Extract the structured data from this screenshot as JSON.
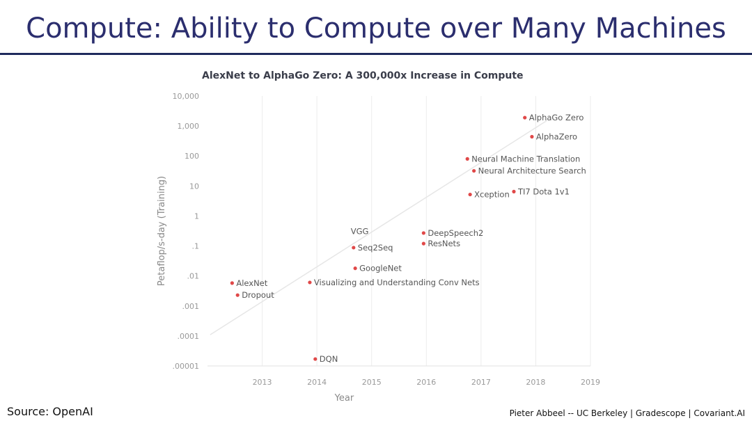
{
  "slide": {
    "title": "Compute: Ability to Compute over Many Machines",
    "source": "Source: OpenAI",
    "footer": "Pieter Abbeel -- UC Berkeley | Gradescope | Covariant.AI"
  },
  "colors": {
    "title": "#2b2e6e",
    "rule": "#1f2a5c",
    "point": "#e04848",
    "trend": "#e6e6e6"
  },
  "chart_data": {
    "type": "scatter",
    "title": "AlexNet to AlphaGo Zero: A 300,000x Increase in Compute",
    "xlabel": "Year",
    "ylabel": "Petaflop/s-day (Training)",
    "xlim": [
      2012.0,
      2019.0
    ],
    "ylim": [
      1e-05,
      10000
    ],
    "y_scale": "log",
    "grid": "x",
    "x_ticks": [
      2013,
      2014,
      2015,
      2016,
      2017,
      2018,
      2019
    ],
    "x_tick_labels": [
      "2013",
      "2014",
      "2015",
      "2016",
      "2017",
      "2018",
      "2019"
    ],
    "y_ticks": [
      10000,
      1000,
      100,
      10,
      1,
      0.1,
      0.01,
      0.001,
      0.0001,
      1e-05
    ],
    "y_tick_labels": [
      "10,000",
      "1,000",
      "100",
      "10",
      "1",
      ".1",
      ".01",
      ".001",
      ".0001",
      ".00001"
    ],
    "trend": {
      "start": [
        2012.05,
        0.00011
      ],
      "end": [
        2018.2,
        1500
      ]
    },
    "points": [
      {
        "name": "AlexNet",
        "x": 2012.45,
        "y": 0.0058
      },
      {
        "name": "Dropout",
        "x": 2012.55,
        "y": 0.0023
      },
      {
        "name": "Visualizing and Understanding Conv Nets",
        "x": 2013.87,
        "y": 0.0061
      },
      {
        "name": "DQN",
        "x": 2013.97,
        "y": 1.7e-05
      },
      {
        "name": "GoogleNet",
        "x": 2014.7,
        "y": 0.018
      },
      {
        "name": "Seq2Seq",
        "x": 2014.67,
        "y": 0.088
      },
      {
        "name": "VGG",
        "x": 2014.67,
        "y": 0.1,
        "label_above": true
      },
      {
        "name": "DeepSpeech2",
        "x": 2015.95,
        "y": 0.27
      },
      {
        "name": "ResNets",
        "x": 2015.95,
        "y": 0.12
      },
      {
        "name": "Xception",
        "x": 2016.8,
        "y": 5.2
      },
      {
        "name": "Neural Machine Translation",
        "x": 2016.75,
        "y": 80
      },
      {
        "name": "Neural Architecture Search",
        "x": 2016.87,
        "y": 32
      },
      {
        "name": "TI7 Dota 1v1",
        "x": 2017.6,
        "y": 6.5
      },
      {
        "name": "AlphaGo Zero",
        "x": 2017.8,
        "y": 1900
      },
      {
        "name": "AlphaZero",
        "x": 2017.93,
        "y": 440
      }
    ]
  }
}
